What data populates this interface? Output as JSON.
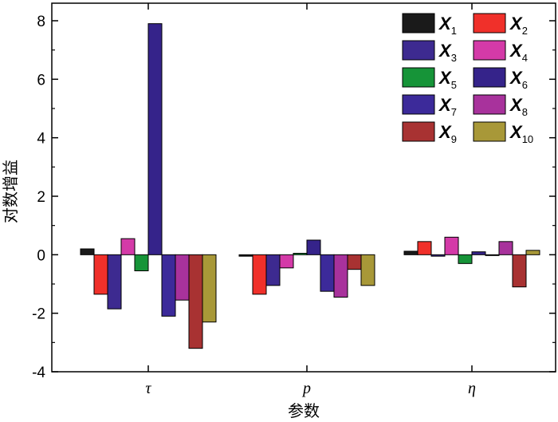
{
  "chart_data": {
    "type": "bar",
    "xlabel": "参数",
    "ylabel": "对数增益",
    "ylim": [
      -4,
      8.6
    ],
    "yticks": [
      "-4",
      "-2",
      "0",
      "2",
      "4",
      "6",
      "8"
    ],
    "categories": [
      "τ",
      "p",
      "η"
    ],
    "legend_position": "top-right",
    "grid": false,
    "series": [
      {
        "name": "X",
        "sub": "1",
        "color": "#1a1a1a",
        "values": [
          0.2,
          -0.05,
          0.12
        ]
      },
      {
        "name": "X",
        "sub": "2",
        "color": "#f0302a",
        "values": [
          -1.35,
          -1.35,
          0.45
        ]
      },
      {
        "name": "X",
        "sub": "3",
        "color": "#3d2a90",
        "values": [
          -1.85,
          -1.05,
          -0.05
        ]
      },
      {
        "name": "X",
        "sub": "4",
        "color": "#d43aa8",
        "values": [
          0.55,
          -0.45,
          0.6
        ]
      },
      {
        "name": "X",
        "sub": "5",
        "color": "#169438",
        "values": [
          -0.55,
          0.05,
          -0.3
        ]
      },
      {
        "name": "X",
        "sub": "6",
        "color": "#35238a",
        "values": [
          7.9,
          0.5,
          0.1
        ]
      },
      {
        "name": "X",
        "sub": "7",
        "color": "#3c2a9a",
        "values": [
          -2.1,
          -1.25,
          0.0
        ]
      },
      {
        "name": "X",
        "sub": "8",
        "color": "#a8329c",
        "values": [
          -1.55,
          -1.45,
          0.45
        ]
      },
      {
        "name": "X",
        "sub": "9",
        "color": "#a83232",
        "values": [
          -3.2,
          -0.5,
          -1.1
        ]
      },
      {
        "name": "X",
        "sub": "10",
        "color": "#a89838",
        "values": [
          -2.3,
          -1.05,
          0.15
        ]
      }
    ]
  }
}
